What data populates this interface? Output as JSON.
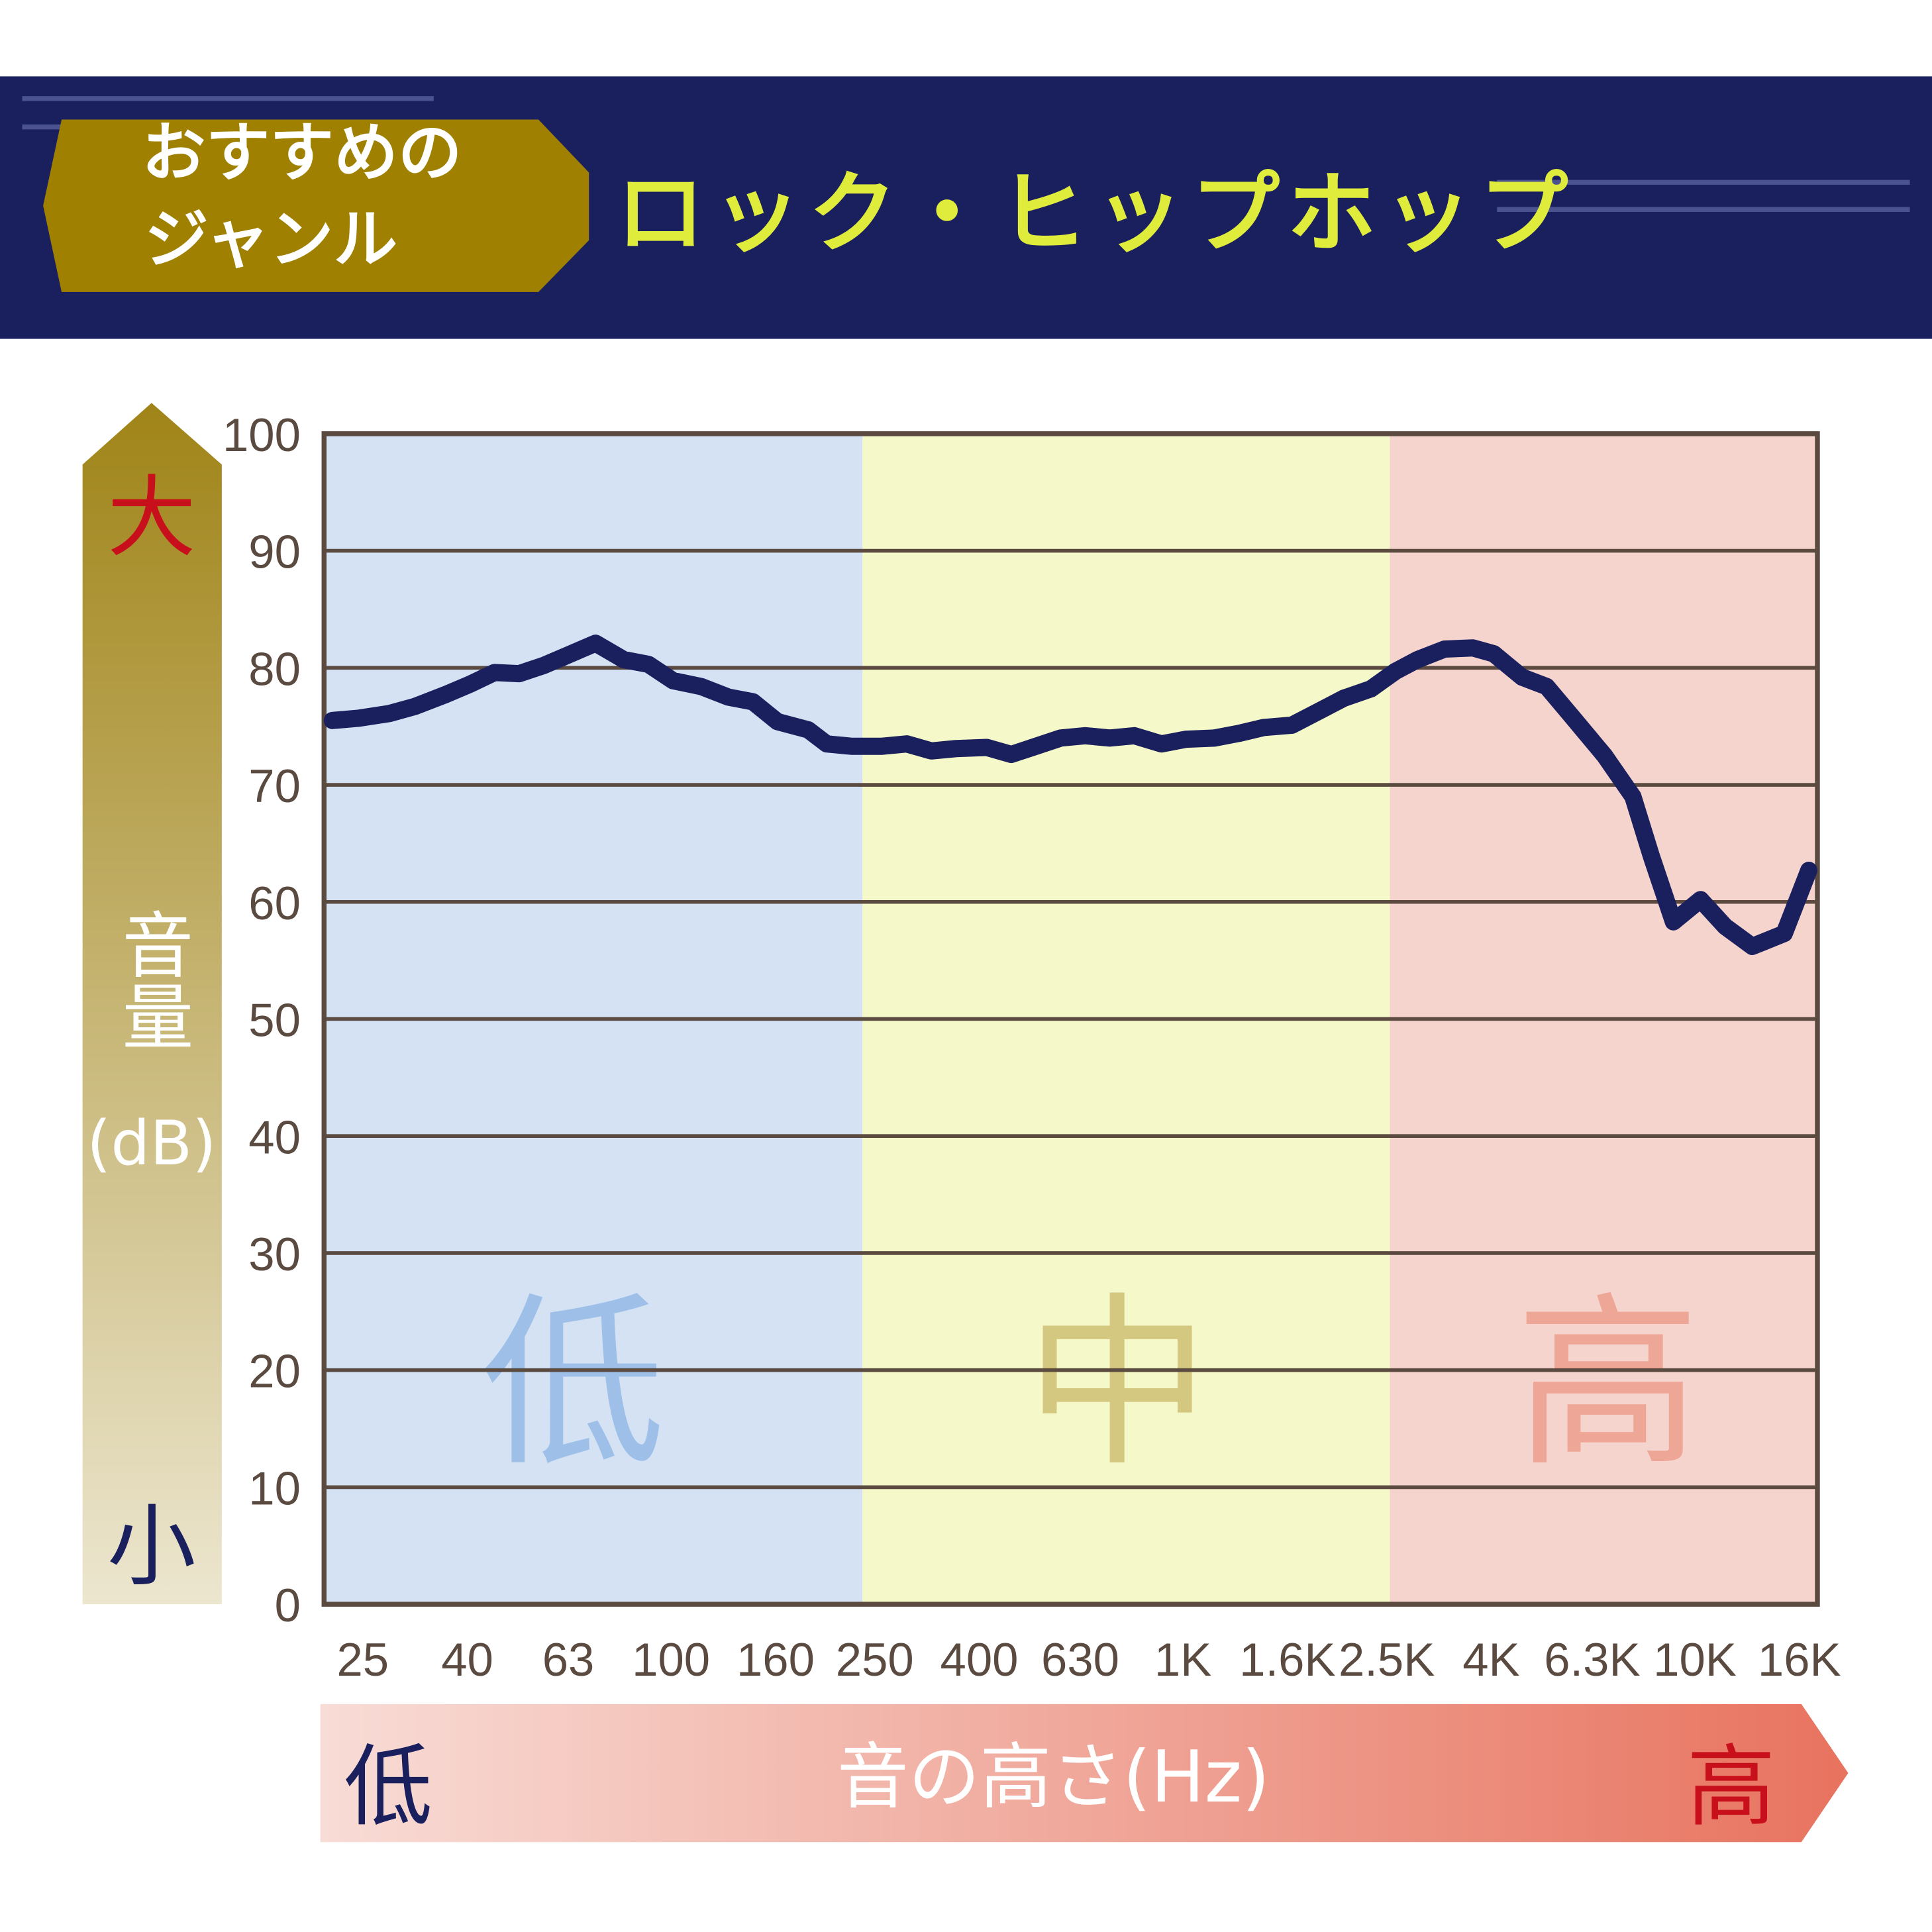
{
  "header": {
    "tag": [
      "おすすめの",
      "ジャンル"
    ],
    "title": "ロック・ヒップホップ"
  },
  "chart_data": {
    "type": "line",
    "log_x": true,
    "grid": true,
    "ylabel": [
      "音量",
      "(dB)"
    ],
    "y_high": "大",
    "y_low": "小",
    "xlabel": "音の高さ(Hz)",
    "x_low": "低",
    "x_high": "高",
    "bands": [
      "低",
      "中",
      "高"
    ],
    "xlim": [
      21.0,
      17350
    ],
    "ylim": [
      0,
      100
    ],
    "yticks": [
      0,
      10,
      20,
      30,
      40,
      50,
      60,
      70,
      80,
      90,
      100
    ],
    "xticks": [
      25,
      40,
      63,
      100,
      160,
      250,
      400,
      630,
      {
        "value": 1000,
        "label": "1K"
      },
      {
        "value": 1600,
        "label": "1.6K"
      },
      {
        "value": 2500,
        "label": "2.5K"
      },
      {
        "value": 4000,
        "label": "4K"
      },
      {
        "value": 6300,
        "label": "6.3K"
      },
      {
        "value": 10000,
        "label": "10K"
      },
      {
        "value": 16000,
        "label": "16K"
      }
    ],
    "x": [
      21.8,
      24.6,
      28.2,
      31.6,
      36.2,
      40.5,
      45.2,
      50.5,
      56.4,
      63.0,
      71.2,
      80.8,
      90.3,
      100.9,
      114.6,
      129.4,
      144.5,
      161.4,
      185.4,
      201.4,
      225,
      258.5,
      288.7,
      322.5,
      360.2,
      413.8,
      462.1,
      516.2,
      576.6,
      644.0,
      719.4,
      803.6,
      907.9,
      1014,
      1152,
      1286,
      1437,
      1632,
      1844,
      2060,
      2328,
      2600,
      2872,
      3244,
      3684,
      4047,
      4597,
      5134,
      5735,
      6660,
      7566,
      8221,
      9079,
      10257,
      11457,
      12942,
      14944,
      16693
    ],
    "series": [
      {
        "color": "#1a1f5e",
        "values": [
          75.5,
          75.7,
          76.1,
          76.7,
          77.7,
          78.6,
          79.6,
          79.5,
          80.2,
          81.1,
          82.1,
          80.7,
          80.3,
          78.9,
          78.4,
          77.5,
          77.1,
          75.4,
          74.7,
          73.5,
          73.3,
          73.3,
          73.5,
          72.9,
          73.1,
          73.2,
          72.6,
          73.3,
          74.0,
          74.2,
          74.0,
          74.2,
          73.5,
          73.9,
          74.0,
          74.4,
          74.9,
          75.1,
          76.3,
          77.4,
          78.2,
          79.7,
          80.7,
          81.6,
          81.7,
          81.2,
          79.2,
          78.4,
          75.9,
          72.5,
          69.0,
          63.9,
          58.3,
          60.2,
          57.9,
          56.2,
          57.3,
          62.7
        ]
      }
    ]
  }
}
